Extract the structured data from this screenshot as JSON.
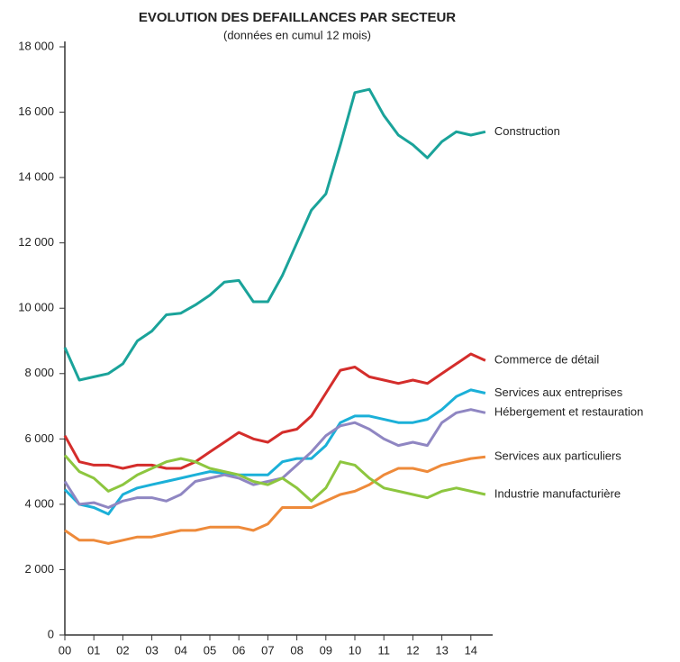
{
  "chart_data": {
    "type": "line",
    "title": "EVOLUTION DES DEFAILLANCES PAR SECTEUR",
    "subtitle": "(données en cumul 12 mois)",
    "x": [
      0,
      0.5,
      1,
      1.5,
      2,
      2.5,
      3,
      3.5,
      4,
      4.5,
      5,
      5.5,
      6,
      6.5,
      7,
      7.5,
      8,
      8.5,
      9,
      9.5,
      10,
      10.5,
      11,
      11.5,
      12,
      12.5,
      13,
      13.5,
      14,
      14.5
    ],
    "xlim": [
      0,
      15
    ],
    "xticks": [
      {
        "value": 0,
        "label": "00"
      },
      {
        "value": 1,
        "label": "01"
      },
      {
        "value": 2,
        "label": "02"
      },
      {
        "value": 3,
        "label": "03"
      },
      {
        "value": 4,
        "label": "04"
      },
      {
        "value": 5,
        "label": "05"
      },
      {
        "value": 6,
        "label": "06"
      },
      {
        "value": 7,
        "label": "07"
      },
      {
        "value": 8,
        "label": "08"
      },
      {
        "value": 9,
        "label": "09"
      },
      10,
      11,
      12,
      13,
      14
    ],
    "ylim": [
      0,
      18000
    ],
    "yticks": [
      0,
      {
        "value": 2000,
        "label": "2 000"
      },
      {
        "value": 4000,
        "label": "4 000"
      },
      {
        "value": 6000,
        "label": "6 000"
      },
      {
        "value": 8000,
        "label": "8 000"
      },
      {
        "value": 10000,
        "label": "10 000"
      },
      {
        "value": 12000,
        "label": "12 000"
      },
      {
        "value": 14000,
        "label": "14 000"
      },
      {
        "value": 16000,
        "label": "16 000"
      },
      {
        "value": 18000,
        "label": "18 000"
      }
    ],
    "series": [
      {
        "name": "Construction",
        "color": "#1aa39a",
        "values": [
          8800,
          7800,
          7900,
          8000,
          8300,
          9000,
          9300,
          9800,
          9850,
          10100,
          10400,
          10800,
          10850,
          10200,
          10200,
          11000,
          12000,
          13000,
          13500,
          15000,
          16600,
          16700,
          15900,
          15300,
          15000,
          14600,
          15100,
          15400,
          15300,
          15400
        ]
      },
      {
        "name": "Commerce de détail",
        "color": "#d42d2b",
        "values": [
          6100,
          5300,
          5200,
          5200,
          5100,
          5200,
          5200,
          5100,
          5100,
          5300,
          5600,
          5900,
          6200,
          6000,
          5900,
          6200,
          6300,
          6700,
          7400,
          8100,
          8200,
          7900,
          7800,
          7700,
          7800,
          7700,
          8000,
          8300,
          8600,
          8400
        ]
      },
      {
        "name": "Services aux entreprises",
        "color": "#1bb0d8",
        "values": [
          4450,
          4000,
          3900,
          3700,
          4300,
          4500,
          4600,
          4700,
          4800,
          4900,
          5000,
          4950,
          4900,
          4900,
          4900,
          5300,
          5400,
          5400,
          5800,
          6500,
          6700,
          6700,
          6600,
          6500,
          6500,
          6600,
          6900,
          7300,
          7500,
          7400
        ]
      },
      {
        "name": "Hébergement et restauration",
        "color": "#8f86c2",
        "values": [
          4700,
          4000,
          4050,
          3900,
          4100,
          4200,
          4200,
          4100,
          4300,
          4700,
          4800,
          4900,
          4800,
          4600,
          4700,
          4800,
          5200,
          5600,
          6100,
          6400,
          6500,
          6300,
          6000,
          5800,
          5900,
          5800,
          6500,
          6800,
          6900,
          6800
        ]
      },
      {
        "name": "Services aux particuliers",
        "color": "#ee8a3a",
        "values": [
          3200,
          2900,
          2900,
          2800,
          2900,
          3000,
          3000,
          3100,
          3200,
          3200,
          3300,
          3300,
          3300,
          3200,
          3400,
          3900,
          3900,
          3900,
          4100,
          4300,
          4400,
          4600,
          4900,
          5100,
          5100,
          5000,
          5200,
          5300,
          5400,
          5450
        ]
      },
      {
        "name": "Industrie manufacturière",
        "color": "#8dc63f",
        "values": [
          5500,
          5000,
          4800,
          4400,
          4600,
          4900,
          5100,
          5300,
          5400,
          5300,
          5100,
          5000,
          4900,
          4700,
          4600,
          4800,
          4500,
          4100,
          4500,
          5300,
          5200,
          4800,
          4500,
          4400,
          4300,
          4200,
          4400,
          4500,
          4400,
          4300
        ]
      }
    ]
  }
}
